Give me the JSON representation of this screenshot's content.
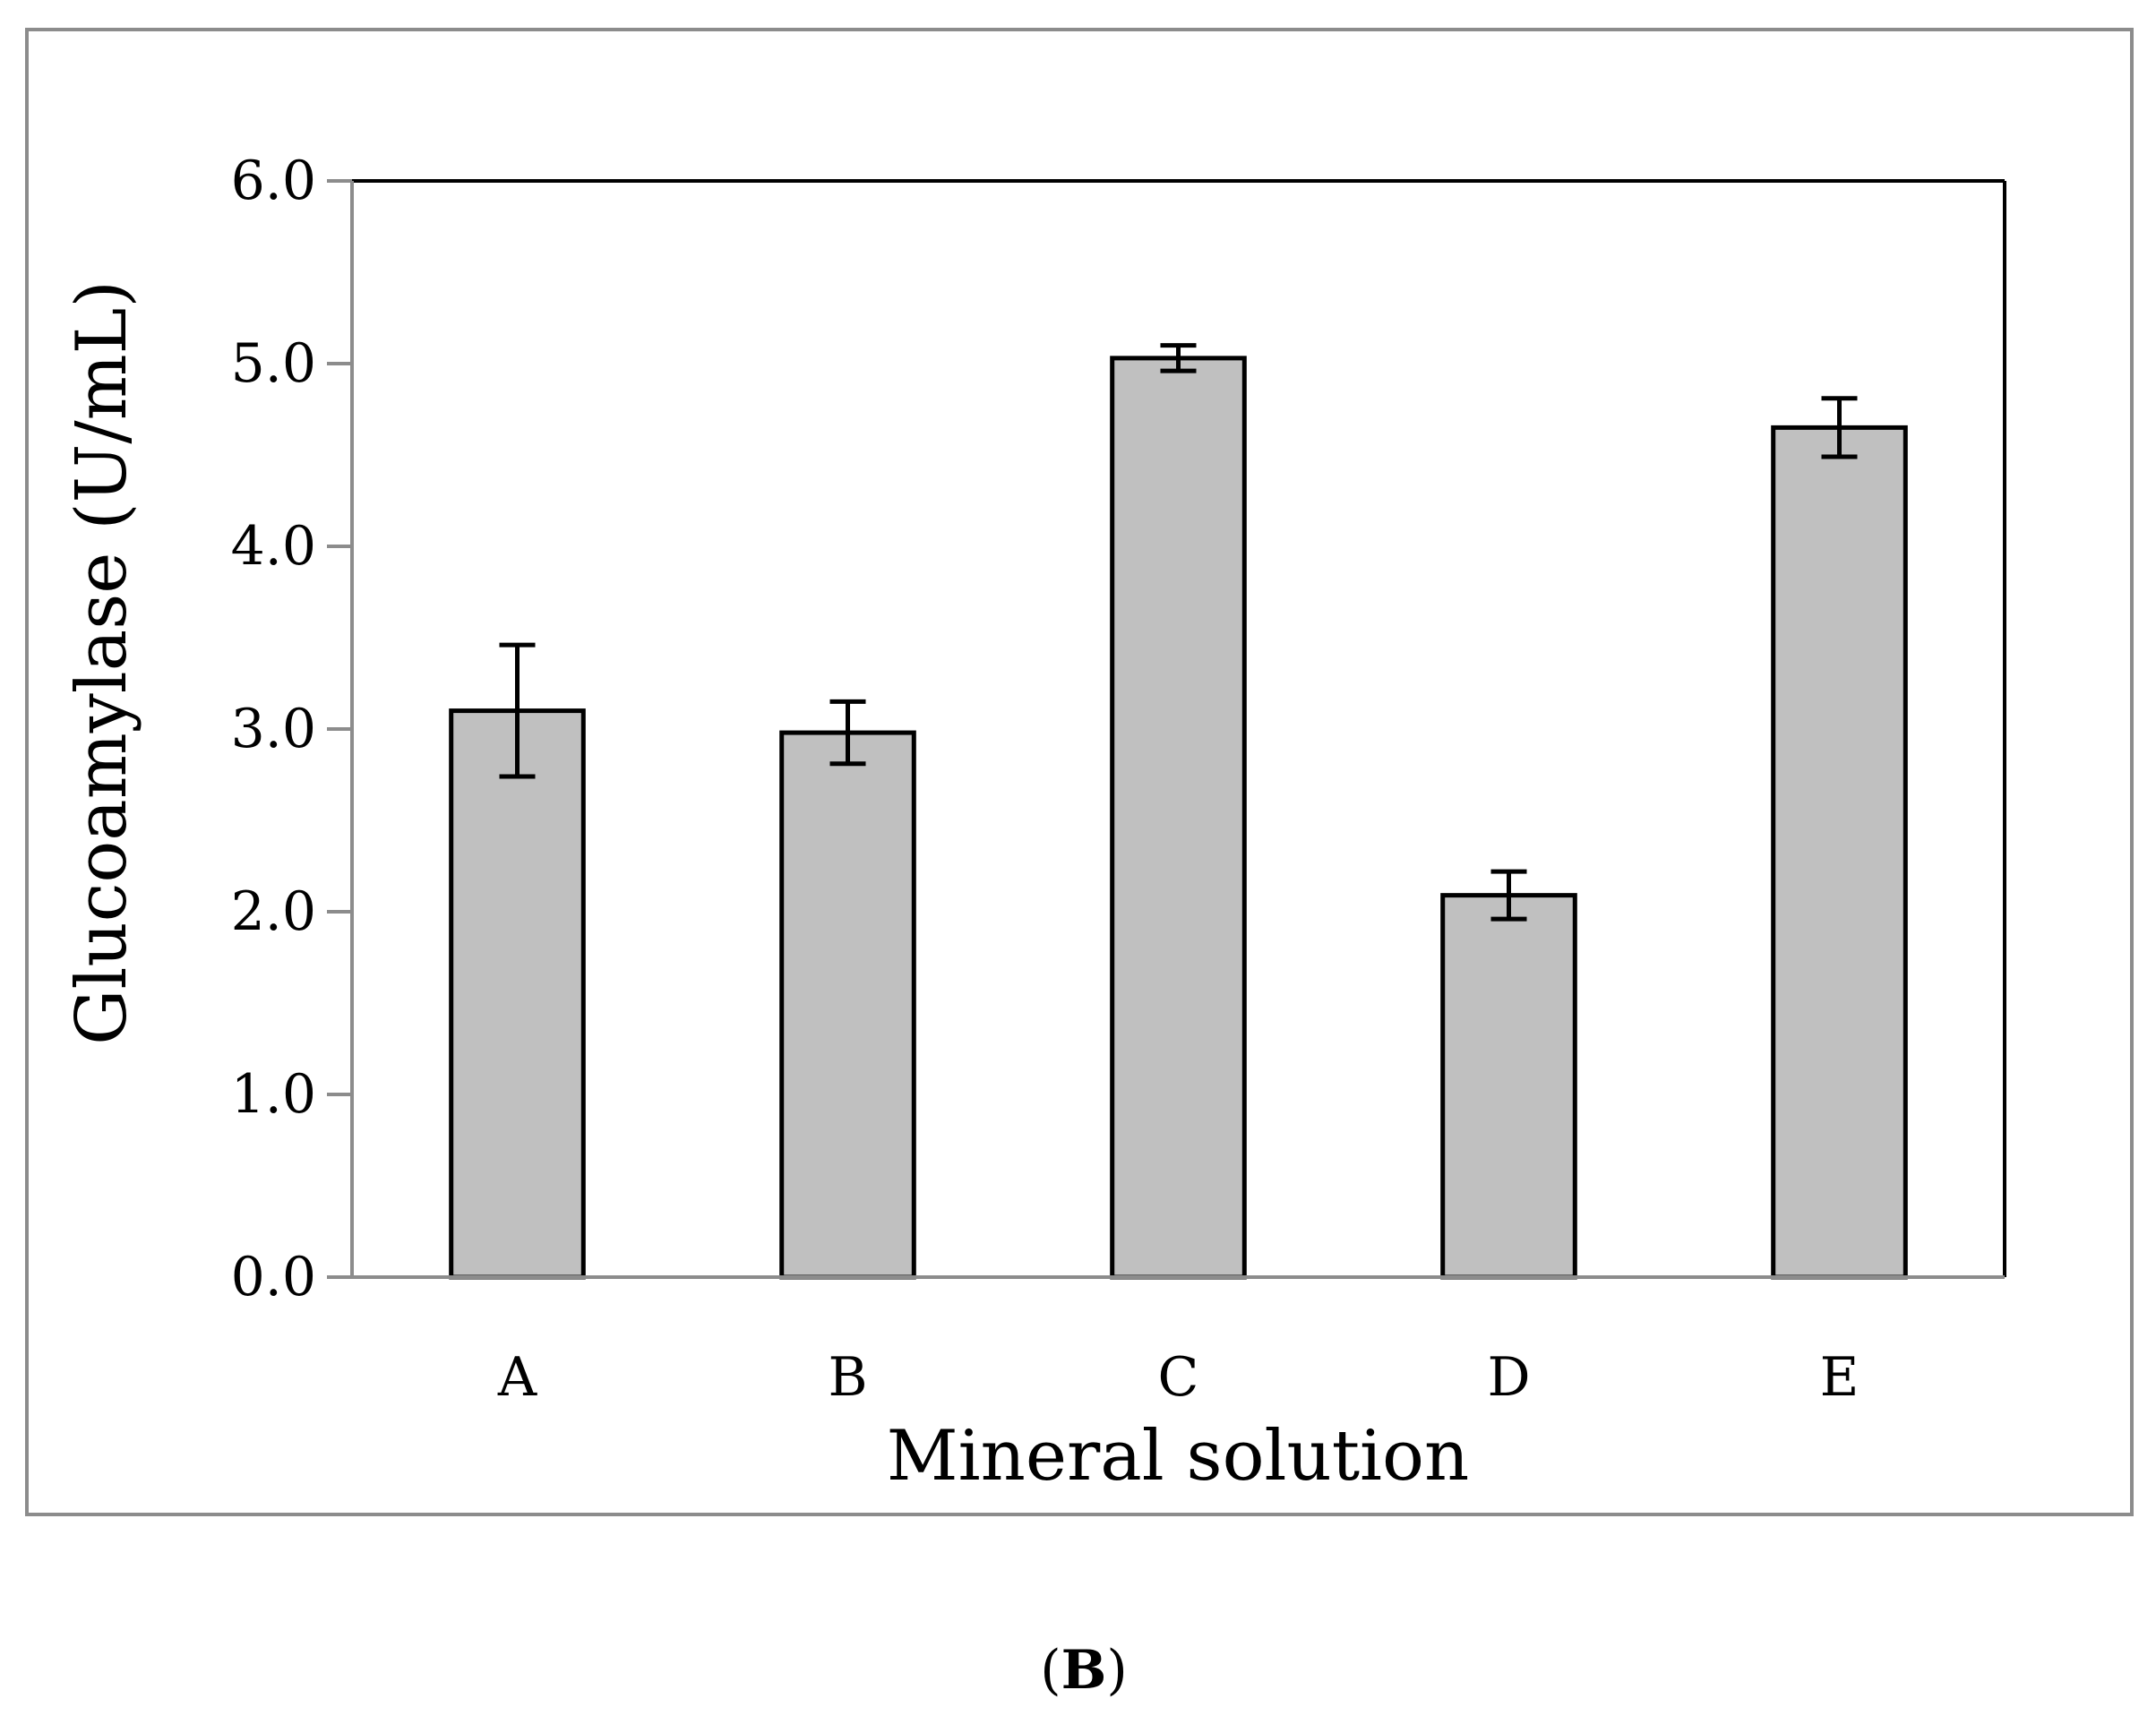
{
  "chart_data": {
    "type": "bar",
    "title": "",
    "xlabel": "Mineral solution",
    "ylabel": "Glucoamylase (U/mL)",
    "categories": [
      "A",
      "B",
      "C",
      "D",
      "E"
    ],
    "values": [
      3.1,
      2.98,
      5.03,
      2.09,
      4.65
    ],
    "errors": [
      0.36,
      0.17,
      0.07,
      0.13,
      0.16
    ],
    "ylim": [
      0,
      6
    ],
    "yticks": [
      "0.0",
      "1.0",
      "2.0",
      "3.0",
      "4.0",
      "5.0",
      "6.0"
    ],
    "grid": false,
    "legend": "none",
    "bar_color": "#c0c0c0",
    "edge_color": "#000000",
    "panel_label": {
      "open": "(",
      "letter": "B",
      "close": ")"
    }
  }
}
